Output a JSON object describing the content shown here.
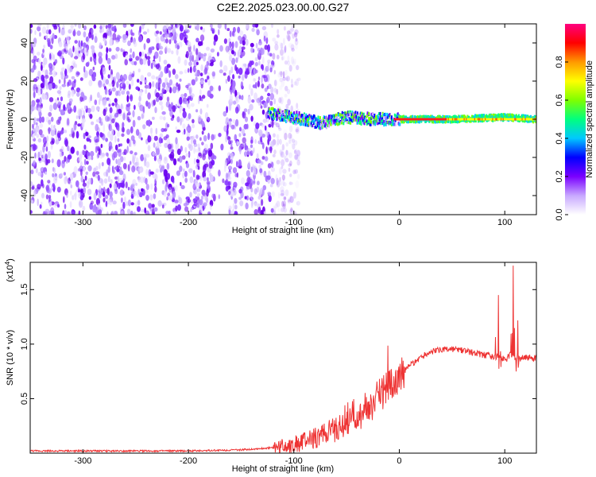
{
  "title": "C2E2.2025.023.00.00.G27",
  "chart_data": [
    {
      "type": "heatmap",
      "xlabel": "Height of straight line (km)",
      "ylabel": "Frequency (Hz)",
      "xlim": [
        -350,
        130
      ],
      "ylim": [
        -50,
        50
      ],
      "xticks": [
        -300,
        -200,
        -100,
        0,
        100
      ],
      "yticks": [
        -40,
        -20,
        0,
        20,
        40
      ],
      "colorbar": {
        "label": "Normalized spectral amplitude",
        "range": [
          0,
          1
        ],
        "ticks": [
          "0.0",
          "0.2",
          "0.4",
          "0.6",
          "0.8"
        ],
        "colors": [
          "#ffffff",
          "#c8a8ff",
          "#7a00ff",
          "#0000ff",
          "#00c8ff",
          "#00ff7f",
          "#7fff00",
          "#ffff00",
          "#ff9900",
          "#ff0000",
          "#ff0080"
        ]
      },
      "features": {
        "scattered_noise_range_km": [
          -350,
          -120
        ],
        "noise_gap_km": [
          -175,
          -165
        ],
        "tracked_signal": {
          "x": [
            -125,
            -100,
            -75,
            -50,
            -25,
            0,
            50,
            100,
            130
          ],
          "y": [
            3,
            1,
            -2,
            1,
            0,
            0,
            0,
            1,
            0
          ]
        }
      }
    },
    {
      "type": "line",
      "xlabel": "Height of straight line (km)",
      "ylabel": "SNR (10 * v/v)",
      "yscale_label": "(x10",
      "yscale_exp": "4",
      "xlim": [
        -350,
        130
      ],
      "ylim": [
        0,
        1.75
      ],
      "xticks": [
        -300,
        -200,
        -100,
        0,
        100
      ],
      "yticks": [
        "0.5",
        "1.0",
        "1.5"
      ],
      "series": [
        {
          "color": "#ee3333",
          "x": [
            -350,
            -300,
            -250,
            -200,
            -150,
            -120,
            -100,
            -80,
            -60,
            -40,
            -30,
            -20,
            -10,
            0,
            10,
            20,
            30,
            40,
            50,
            60,
            70,
            80,
            90,
            95,
            100,
            105,
            110,
            115,
            120,
            130
          ],
          "y": [
            0.02,
            0.02,
            0.02,
            0.02,
            0.03,
            0.05,
            0.08,
            0.14,
            0.22,
            0.32,
            0.4,
            0.52,
            0.6,
            0.72,
            0.8,
            0.88,
            0.93,
            0.95,
            0.95,
            0.94,
            0.92,
            0.9,
            0.88,
            0.9,
            0.85,
            0.9,
            0.88,
            0.87,
            0.88,
            0.87
          ]
        }
      ],
      "spikes": [
        {
          "x": 94,
          "y": 1.45
        },
        {
          "x": 108,
          "y": 1.72
        },
        {
          "x": 112,
          "y": 1.6
        }
      ]
    }
  ]
}
